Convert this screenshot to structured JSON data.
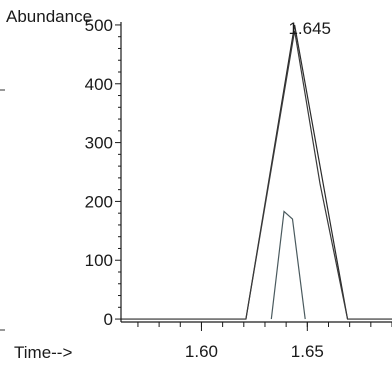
{
  "chart_data": {
    "type": "line",
    "title": "",
    "ylabel": "Abundance",
    "xlabel": "Time-->",
    "xlim": [
      1.562,
      1.69
    ],
    "ylim": [
      -5,
      505
    ],
    "y_ticks": [
      "0",
      "100",
      "200",
      "300",
      "400",
      "500"
    ],
    "x_ticks": [
      "1.60",
      "1.65"
    ],
    "y_tick_values": [
      0,
      100,
      200,
      300,
      400,
      500
    ],
    "x_tick_values": [
      1.6,
      1.65
    ],
    "x_minor_step": 0.01,
    "annotations": [
      {
        "text": "1.645",
        "x": 1.645,
        "y": 485
      }
    ],
    "grid": false,
    "series": [
      {
        "color": "#2a2a2a",
        "x": [
          1.552,
          1.621,
          1.644,
          1.669,
          1.69
        ],
        "y": [
          0,
          0,
          500,
          0,
          0
        ]
      },
      {
        "color": "#3a3a3a",
        "x": [
          1.621,
          1.644,
          1.656,
          1.669
        ],
        "y": [
          0,
          490,
          230,
          0
        ]
      },
      {
        "color": "#4a5a5e",
        "x": [
          1.633,
          1.639,
          1.643,
          1.649
        ],
        "y": [
          0,
          183,
          170,
          0
        ]
      }
    ]
  }
}
